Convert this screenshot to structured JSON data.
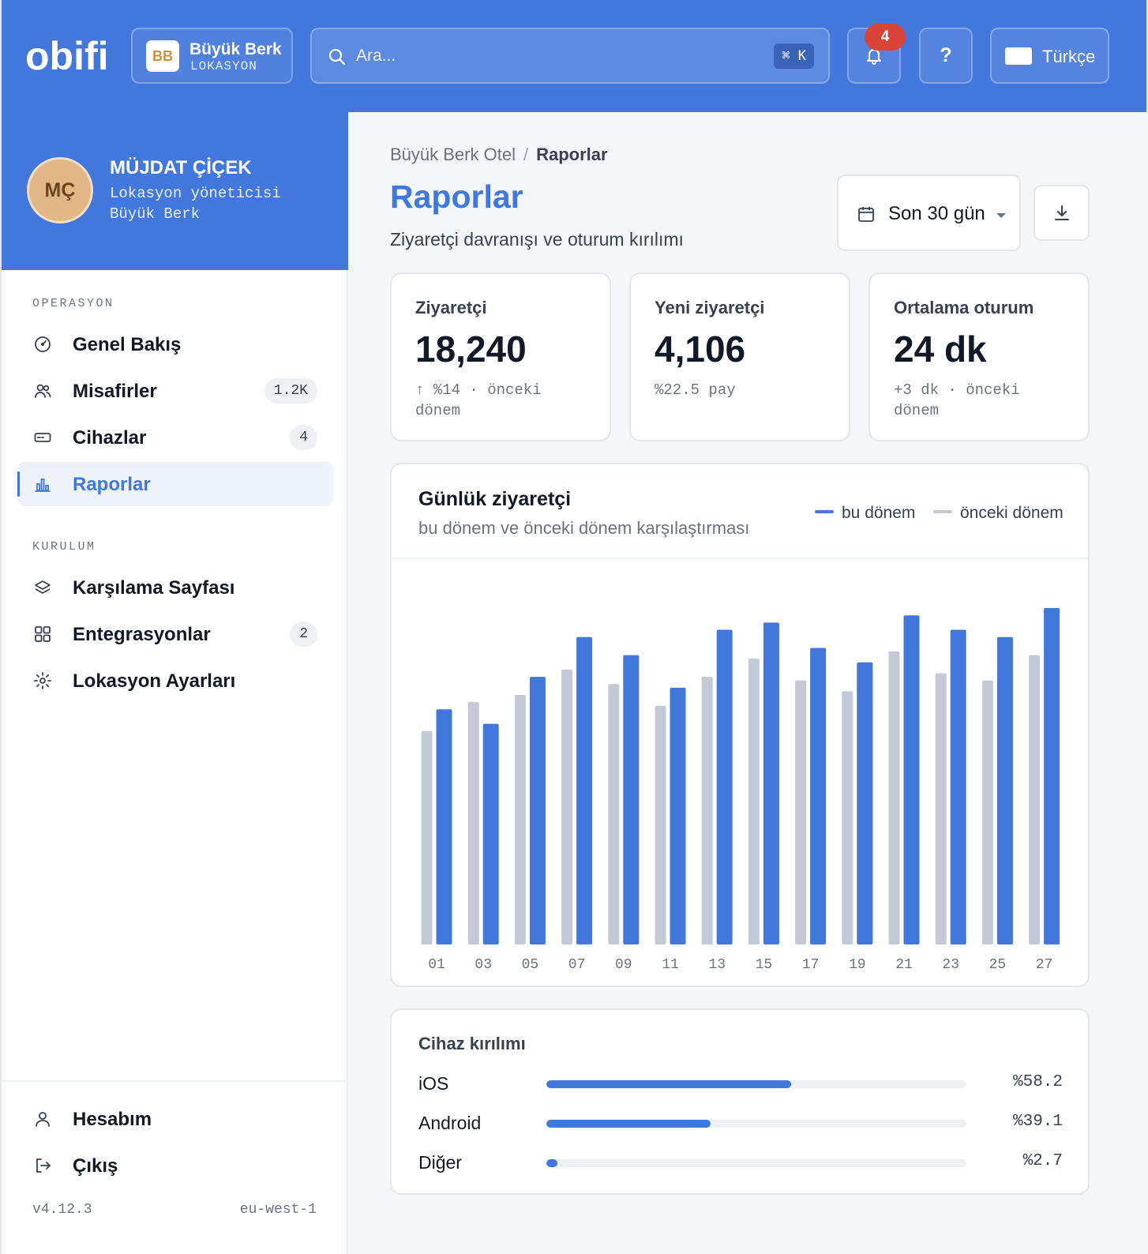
{
  "brand": {
    "logo_text": "obifi"
  },
  "location": {
    "badge": "BB",
    "name": "Büyük Berk",
    "subtitle": "LOKASYON"
  },
  "search": {
    "placeholder": "Ara...",
    "shortcut": "⌘ K"
  },
  "notifications": {
    "count": "4"
  },
  "help": {
    "label": "?"
  },
  "language": {
    "label": "Türkçe"
  },
  "user": {
    "initials": "MÇ",
    "name": "MÜJDAT ÇİÇEK",
    "role": "Lokasyon yöneticisi",
    "location": "Büyük Berk"
  },
  "sidebar": {
    "sections": [
      {
        "label": "OPERASYON",
        "items": [
          {
            "label": "Genel Bakış",
            "icon": "gauge-icon"
          },
          {
            "label": "Misafirler",
            "icon": "users-icon",
            "count": "1.2K"
          },
          {
            "label": "Cihazlar",
            "icon": "device-icon",
            "count": "4"
          },
          {
            "label": "Raporlar",
            "icon": "bar-chart-icon",
            "active": true
          }
        ]
      },
      {
        "label": "KURULUM",
        "items": [
          {
            "label": "Karşılama Sayfası",
            "icon": "layers-icon"
          },
          {
            "label": "Entegrasyonlar",
            "icon": "grid-icon",
            "count": "2"
          },
          {
            "label": "Lokasyon Ayarları",
            "icon": "settings-icon"
          }
        ]
      }
    ],
    "footer_items": [
      {
        "label": "Hesabım",
        "icon": "user-icon"
      },
      {
        "label": "Çıkış",
        "icon": "logout-icon"
      }
    ],
    "version": "v4.12.3",
    "region": "eu-west-1"
  },
  "breadcrumb": {
    "parent": "Büyük Berk Otel",
    "separator": "/",
    "current": "Raporlar"
  },
  "page": {
    "title": "Raporlar",
    "subtitle": "Ziyaretçi davranışı ve oturum kırılımı"
  },
  "date_range": {
    "label": "Son 30 gün"
  },
  "stats": [
    {
      "label": "Ziyaretçi",
      "value": "18,240",
      "delta": "↑ %14 · önceki dönem"
    },
    {
      "label": "Yeni ziyaretçi",
      "value": "4,106",
      "delta": "%22.5 pay"
    },
    {
      "label": "Ortalama oturum",
      "value": "24 dk",
      "delta": "+3 dk · önceki dönem"
    }
  ],
  "chart": {
    "title": "Günlük ziyaretçi",
    "subtitle": "bu dönem ve önceki dönem karşılaştırması"
  },
  "chart_data": {
    "type": "bar",
    "title": "Günlük ziyaretçi",
    "subtitle": "bu dönem ve önceki dönem karşılaştırması",
    "categories": [
      "01",
      "03",
      "05",
      "07",
      "09",
      "11",
      "13",
      "15",
      "17",
      "19",
      "21",
      "23",
      "25",
      "27"
    ],
    "series": [
      {
        "name": "önceki dönem",
        "color": "#c3cad6",
        "values": [
          59,
          67,
          69,
          76,
          72,
          66,
          74,
          79,
          73,
          70,
          81,
          75,
          73,
          80
        ]
      },
      {
        "name": "bu dönem",
        "color": "#4277dc",
        "values": [
          65,
          61,
          74,
          85,
          80,
          71,
          87,
          89,
          82,
          78,
          91,
          87,
          85,
          93
        ]
      }
    ],
    "ylim": [
      0,
      100
    ],
    "grid": false,
    "legend": "top-right",
    "legend_order": [
      "bu dönem",
      "önceki dönem"
    ]
  },
  "devices": {
    "title": "Cihaz kırılımı",
    "rows": [
      {
        "name": "iOS",
        "percent_label": "%58.2",
        "percent": 58.2
      },
      {
        "name": "Android",
        "percent_label": "%39.1",
        "percent": 39.1
      },
      {
        "name": "Diğer",
        "percent_label": "%2.7",
        "percent": 2.7
      }
    ]
  }
}
